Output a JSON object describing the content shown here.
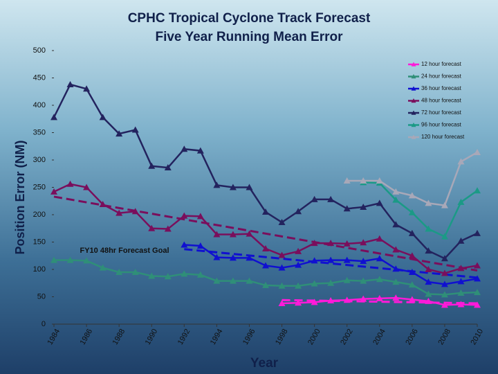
{
  "chart_data": {
    "type": "line",
    "title": "CPHC Tropical Cyclone Track Forecast",
    "subtitle": "Five Year Running Mean Error",
    "x_label": "Year",
    "y_label": "Position Error (NM)",
    "annotation": "FY10 48hr Forecast Goal",
    "x": [
      1984,
      1985,
      1986,
      1987,
      1988,
      1989,
      1990,
      1991,
      1992,
      1993,
      1994,
      1995,
      1996,
      1997,
      1998,
      1999,
      2000,
      2001,
      2002,
      2003,
      2004,
      2005,
      2006,
      2007,
      2008,
      2009,
      2010
    ],
    "xlim": [
      1984,
      2010
    ],
    "xticks": [
      1984,
      1986,
      1988,
      1990,
      1992,
      1994,
      1996,
      1998,
      2000,
      2002,
      2004,
      2006,
      2008,
      2010
    ],
    "ylim": [
      0,
      500
    ],
    "yticks": [
      0,
      50,
      100,
      150,
      200,
      250,
      300,
      350,
      400,
      450,
      500
    ],
    "legend": "top-right",
    "series": [
      {
        "name": "12 hour forecast",
        "color": "#ff1ad9",
        "values": [
          null,
          null,
          null,
          null,
          null,
          null,
          null,
          null,
          null,
          null,
          null,
          null,
          null,
          null,
          38,
          39,
          40,
          43,
          44,
          46,
          47,
          48,
          45,
          42,
          35,
          36,
          35
        ]
      },
      {
        "name": "24 hour forecast",
        "color": "#2f8f78",
        "values": [
          117,
          117,
          116,
          103,
          95,
          95,
          88,
          87,
          92,
          90,
          79,
          79,
          79,
          71,
          70,
          70,
          74,
          75,
          80,
          79,
          82,
          77,
          72,
          55,
          54,
          57,
          58
        ]
      },
      {
        "name": "36 hour forecast",
        "color": "#1010d0",
        "values": [
          null,
          null,
          null,
          null,
          null,
          null,
          null,
          null,
          145,
          143,
          122,
          121,
          121,
          107,
          103,
          108,
          116,
          117,
          117,
          115,
          120,
          101,
          95,
          77,
          73,
          78,
          83
        ]
      },
      {
        "name": "48 hour forecast",
        "color": "#7a0e5c",
        "values": [
          242,
          256,
          250,
          219,
          203,
          206,
          175,
          174,
          198,
          197,
          164,
          164,
          165,
          138,
          126,
          133,
          148,
          148,
          147,
          149,
          156,
          136,
          125,
          100,
          93,
          102,
          107
        ]
      },
      {
        "name": "72 hour forecast",
        "color": "#23235e",
        "values": [
          378,
          438,
          430,
          378,
          348,
          355,
          289,
          286,
          320,
          317,
          254,
          250,
          250,
          205,
          186,
          206,
          228,
          228,
          211,
          214,
          221,
          182,
          166,
          134,
          120,
          152,
          166
        ]
      },
      {
        "name": "96 hour forecast",
        "color": "#1b9a86",
        "values": [
          null,
          null,
          null,
          null,
          null,
          null,
          null,
          null,
          null,
          null,
          null,
          null,
          null,
          null,
          null,
          null,
          null,
          null,
          null,
          259,
          258,
          227,
          204,
          174,
          160,
          223,
          244
        ]
      },
      {
        "name": "120 hour forecast",
        "color": "#a8a8b8",
        "values": [
          null,
          null,
          null,
          null,
          null,
          null,
          null,
          null,
          null,
          null,
          null,
          null,
          null,
          null,
          null,
          null,
          null,
          null,
          262,
          262,
          262,
          242,
          235,
          221,
          217,
          297,
          314
        ]
      }
    ],
    "trend_lines": [
      {
        "color": "#7a0e5c",
        "x": [
          1984,
          2010
        ],
        "values": [
          233,
          98
        ]
      },
      {
        "color": "#1010d0",
        "x": [
          1992,
          2010
        ],
        "values": [
          137,
          85
        ]
      },
      {
        "color": "#ff1ad9",
        "x": [
          1998,
          2010
        ],
        "values": [
          44,
          38
        ]
      }
    ]
  }
}
